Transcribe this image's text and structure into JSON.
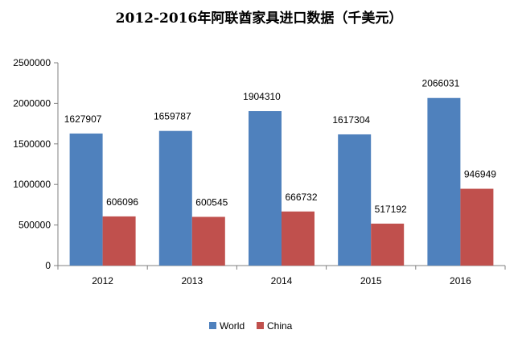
{
  "chart_data": {
    "type": "bar",
    "title": "2012-2016年阿联酋家具进口数据（千美元）",
    "categories": [
      "2012",
      "2013",
      "2014",
      "2015",
      "2016"
    ],
    "series": [
      {
        "name": "World",
        "values": [
          1627907,
          1659787,
          1904310,
          1617304,
          2066031
        ],
        "color": "#4f81bd"
      },
      {
        "name": "China",
        "values": [
          606096,
          600545,
          666732,
          517192,
          946949
        ],
        "color": "#c0504d"
      }
    ],
    "ylim": [
      0,
      2500000
    ],
    "yticks": [
      "0",
      "500000",
      "1000000",
      "1500000",
      "2000000",
      "2500000"
    ],
    "ytick_values": [
      0,
      500000,
      1000000,
      1500000,
      2000000,
      2500000
    ],
    "grid": false,
    "legend_position": "bottom"
  }
}
